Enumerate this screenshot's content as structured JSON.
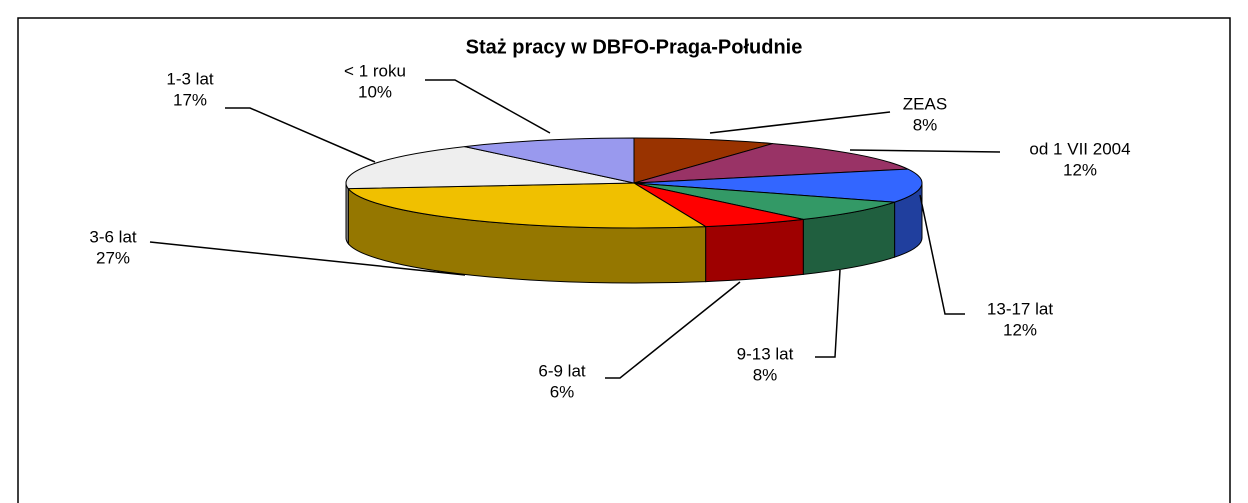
{
  "chart_data": {
    "type": "pie3d",
    "title": "Staż pracy w DBFO-Praga-Południe",
    "categories": [
      "ZEAS",
      "od 1 VII 2004",
      "13-17 lat",
      "9-13 lat",
      "6-9 lat",
      "3-6 lat",
      "1-3 lat",
      "< 1 roku"
    ],
    "values": [
      8,
      12,
      12,
      8,
      6,
      27,
      17,
      10
    ],
    "value_labels": [
      "8%",
      "12%",
      "12%",
      "8%",
      "6%",
      "27%",
      "17%",
      "10%"
    ],
    "colors": [
      "#993300",
      "#993366",
      "#3366ff",
      "#339966",
      "#ff0000",
      "#f0c000",
      "#eeeeee",
      "#9999ee"
    ]
  }
}
